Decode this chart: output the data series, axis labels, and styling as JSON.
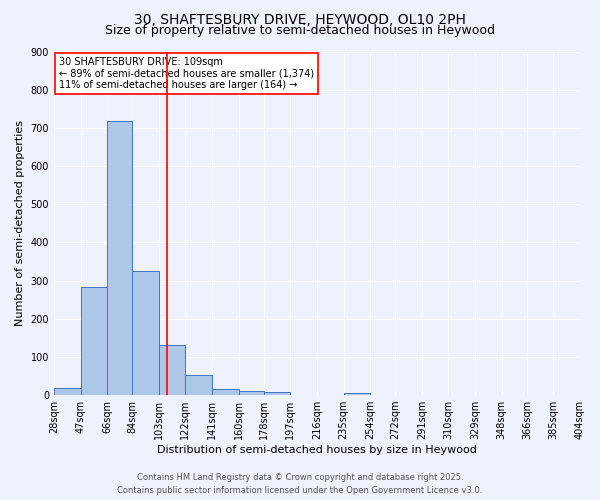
{
  "title_line1": "30, SHAFTESBURY DRIVE, HEYWOOD, OL10 2PH",
  "title_line2": "Size of property relative to semi-detached houses in Heywood",
  "xlabel": "Distribution of semi-detached houses by size in Heywood",
  "ylabel": "Number of semi-detached properties",
  "bin_labels": [
    "28sqm",
    "47sqm",
    "66sqm",
    "84sqm",
    "103sqm",
    "122sqm",
    "141sqm",
    "160sqm",
    "178sqm",
    "197sqm",
    "216sqm",
    "235sqm",
    "254sqm",
    "272sqm",
    "291sqm",
    "310sqm",
    "329sqm",
    "348sqm",
    "366sqm",
    "385sqm",
    "404sqm"
  ],
  "bar_values": [
    18,
    283,
    718,
    325,
    130,
    52,
    15,
    11,
    7,
    0,
    0,
    5,
    0,
    0,
    0,
    0,
    0,
    0,
    0,
    0
  ],
  "bar_color": "#aec6e8",
  "bar_edge_color": "#4472c4",
  "vline_x": 109,
  "vline_color": "red",
  "legend_title": "30 SHAFTESBURY DRIVE: 109sqm",
  "legend_line1": "← 89% of semi-detached houses are smaller (1,374)",
  "legend_line2": "11% of semi-detached houses are larger (164) →",
  "ylim": [
    0,
    900
  ],
  "yticks": [
    0,
    100,
    200,
    300,
    400,
    500,
    600,
    700,
    800,
    900
  ],
  "bin_edges": [
    28,
    47,
    66,
    84,
    103,
    122,
    141,
    160,
    178,
    197,
    216,
    235,
    254,
    272,
    291,
    310,
    329,
    348,
    366,
    385,
    404
  ],
  "background_color": "#eef2fc",
  "footer_line1": "Contains HM Land Registry data © Crown copyright and database right 2025.",
  "footer_line2": "Contains public sector information licensed under the Open Government Licence v3.0.",
  "grid_color": "#ffffff",
  "title_fontsize": 10,
  "subtitle_fontsize": 9,
  "axis_label_fontsize": 8,
  "tick_fontsize": 7,
  "legend_fontsize": 7,
  "footer_fontsize": 6
}
